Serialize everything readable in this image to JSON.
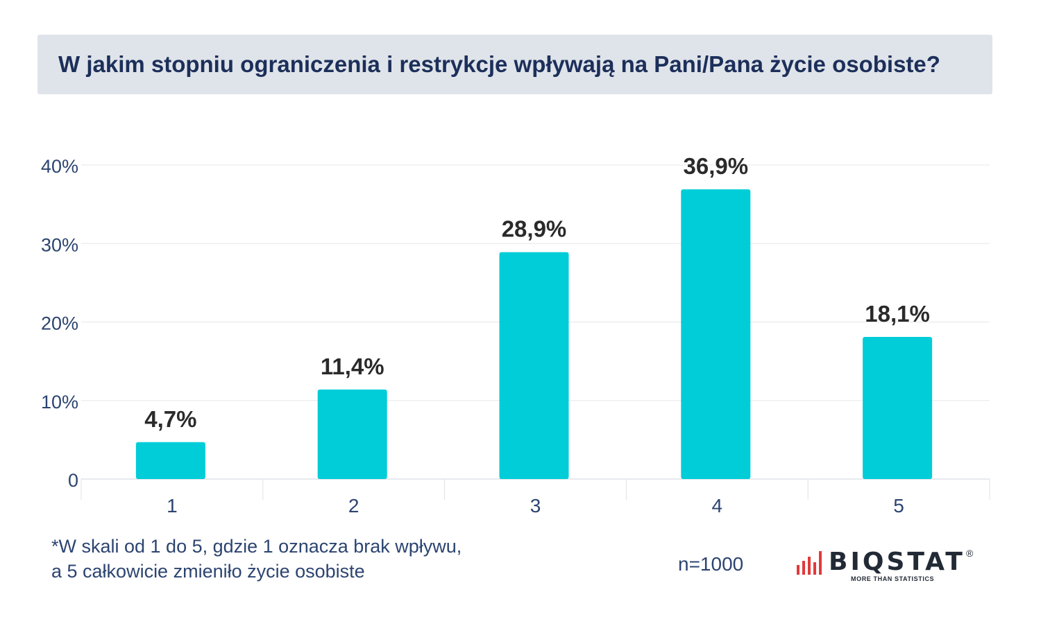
{
  "chart_data": {
    "type": "bar",
    "title": "W jakim stopniu ograniczenia i restrykcje wpływają na Pani/Pana życie osobiste?",
    "categories": [
      "1",
      "2",
      "3",
      "4",
      "5"
    ],
    "values": [
      4.7,
      11.4,
      28.9,
      36.9,
      18.1
    ],
    "data_labels": [
      "4,7%",
      "11,4%",
      "28,9%",
      "36,9%",
      "18,1%"
    ],
    "y_ticks": [
      0,
      10,
      20,
      30,
      40
    ],
    "y_tick_labels": [
      "0",
      "10%",
      "20%",
      "30%",
      "40%"
    ],
    "ylim": [
      0,
      40
    ],
    "grid": true,
    "bar_color": "#00cdd8"
  },
  "footnote": {
    "line1": "*W skali od 1 do 5, gdzie 1 oznacza brak wpływu,",
    "line2": "a 5 całkowicie zmieniło życie osobiste"
  },
  "sample_size": "n=1000",
  "logo": {
    "name": "BIQSTAT",
    "registered": "®",
    "tagline": "MORE THAN STATISTICS",
    "accent_color": "#e03a3a"
  }
}
